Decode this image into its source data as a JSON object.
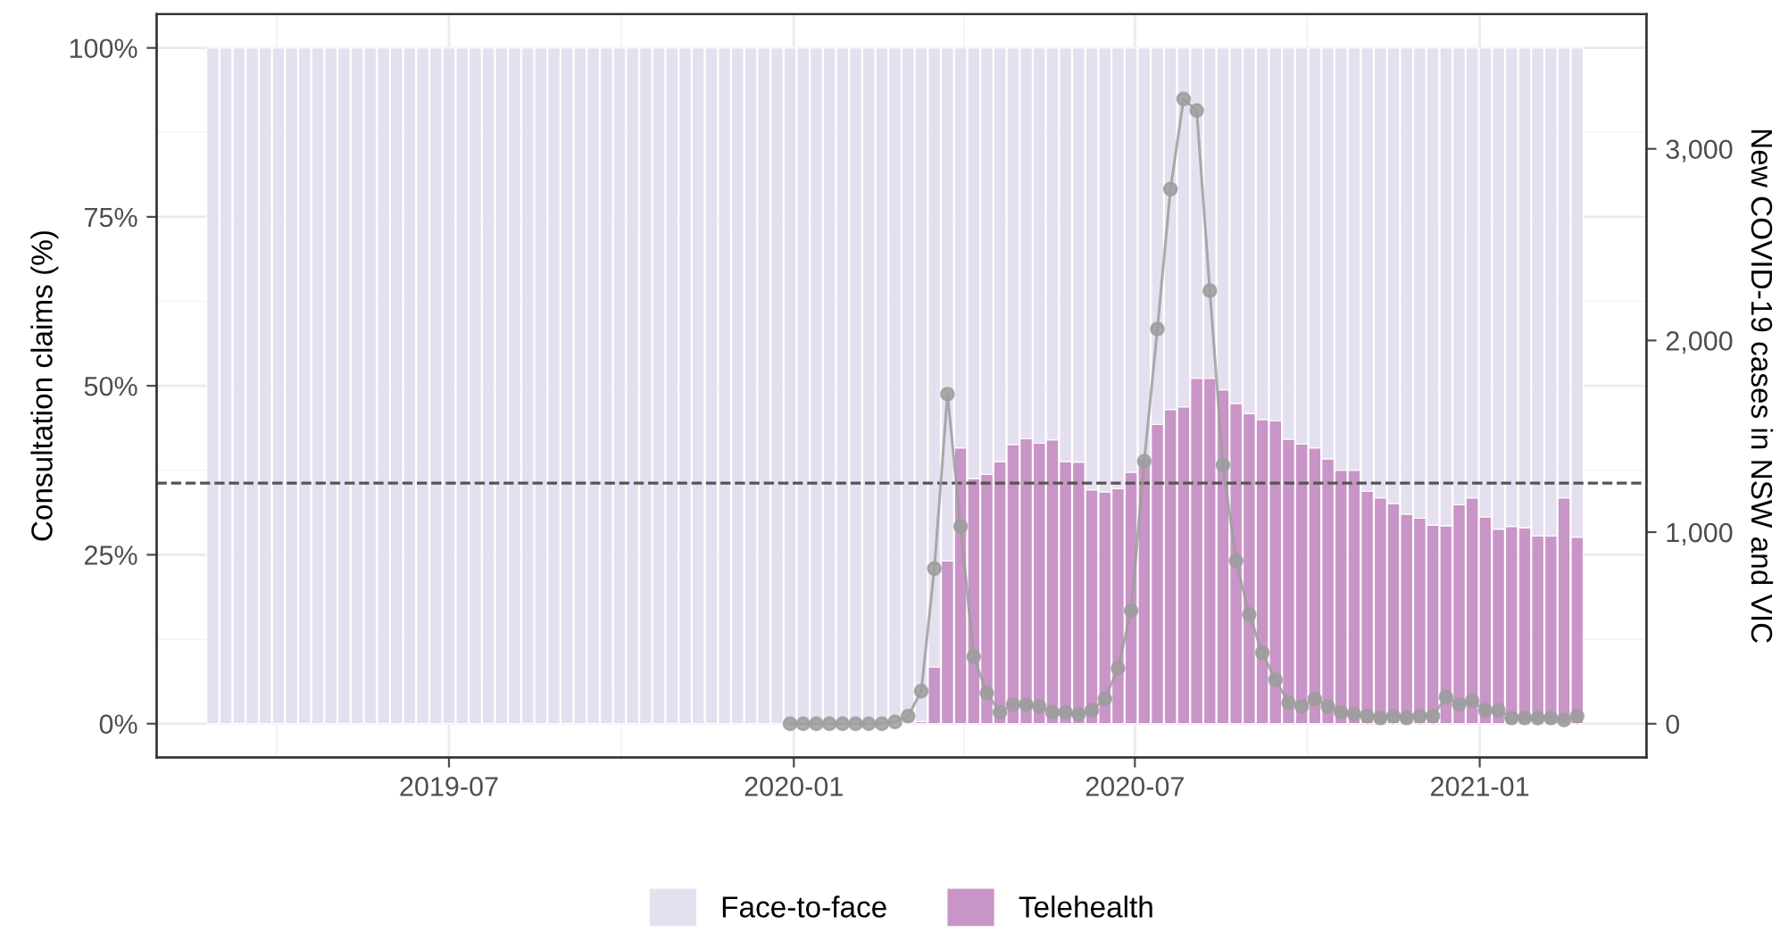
{
  "chart_data": {
    "type": "bar",
    "stacked": true,
    "xlabel": null,
    "ylabel": "Consultation claims (%)",
    "y2label": "New COVID-19 cases in NSW and VIC",
    "x": [
      "2019-02-25",
      "2019-03-04",
      "2019-03-11",
      "2019-03-18",
      "2019-03-25",
      "2019-04-01",
      "2019-04-08",
      "2019-04-15",
      "2019-04-22",
      "2019-04-29",
      "2019-05-06",
      "2019-05-13",
      "2019-05-20",
      "2019-05-27",
      "2019-06-03",
      "2019-06-10",
      "2019-06-17",
      "2019-06-24",
      "2019-07-01",
      "2019-07-08",
      "2019-07-15",
      "2019-07-22",
      "2019-07-29",
      "2019-08-05",
      "2019-08-12",
      "2019-08-19",
      "2019-08-26",
      "2019-09-02",
      "2019-09-09",
      "2019-09-16",
      "2019-09-23",
      "2019-09-30",
      "2019-10-07",
      "2019-10-14",
      "2019-10-21",
      "2019-10-28",
      "2019-11-04",
      "2019-11-11",
      "2019-11-18",
      "2019-11-25",
      "2019-12-02",
      "2019-12-09",
      "2019-12-16",
      "2019-12-23",
      "2019-12-30",
      "2020-01-06",
      "2020-01-13",
      "2020-01-20",
      "2020-01-27",
      "2020-02-03",
      "2020-02-10",
      "2020-02-17",
      "2020-02-24",
      "2020-03-02",
      "2020-03-09",
      "2020-03-16",
      "2020-03-23",
      "2020-03-30",
      "2020-04-06",
      "2020-04-13",
      "2020-04-20",
      "2020-04-27",
      "2020-05-04",
      "2020-05-11",
      "2020-05-18",
      "2020-05-25",
      "2020-06-01",
      "2020-06-08",
      "2020-06-15",
      "2020-06-22",
      "2020-06-29",
      "2020-07-06",
      "2020-07-13",
      "2020-07-20",
      "2020-07-27",
      "2020-08-03",
      "2020-08-10",
      "2020-08-17",
      "2020-08-24",
      "2020-08-31",
      "2020-09-07",
      "2020-09-14",
      "2020-09-21",
      "2020-09-28",
      "2020-10-05",
      "2020-10-12",
      "2020-10-19",
      "2020-10-26",
      "2020-11-02",
      "2020-11-09",
      "2020-11-16",
      "2020-11-23",
      "2020-11-30",
      "2020-12-07",
      "2020-12-14",
      "2020-12-21",
      "2020-12-28",
      "2021-01-04",
      "2021-01-11",
      "2021-01-18",
      "2021-01-25",
      "2021-02-01",
      "2021-02-08",
      "2021-02-15",
      "2021-02-22"
    ],
    "xlim": [
      "2019-01-26",
      "2021-03-31"
    ],
    "xticks": [
      {
        "value": "2019-07-01",
        "label": "2019-07"
      },
      {
        "value": "2020-01-01",
        "label": "2020-01"
      },
      {
        "value": "2020-07-01",
        "label": "2020-07"
      },
      {
        "value": "2021-01-01",
        "label": "2021-01"
      }
    ],
    "ylim": [
      -5,
      105
    ],
    "yticks": [
      {
        "value": 0,
        "label": "0%"
      },
      {
        "value": 25,
        "label": "25%"
      },
      {
        "value": 50,
        "label": "50%"
      },
      {
        "value": 75,
        "label": "75%"
      },
      {
        "value": 100,
        "label": "100%"
      }
    ],
    "y2lim": [
      -176,
      3703
    ],
    "y2ticks": [
      0,
      {
        "value": 1000,
        "label": "1,000"
      },
      {
        "value": 2000,
        "label": "2,000"
      },
      {
        "value": 3000,
        "label": "3,000"
      }
    ],
    "grid": true,
    "legend": "bottom",
    "ref_lines": [
      {
        "axis": "y",
        "value": 35.6,
        "color": "#555555",
        "line_style": "dashed"
      }
    ],
    "series": [
      {
        "name": "Telehealth",
        "color": "#c994c7",
        "values": [
          0,
          0,
          0,
          0,
          0,
          0,
          0,
          0,
          0,
          0,
          0,
          0,
          0,
          0,
          0,
          0,
          0,
          0,
          0,
          0,
          0,
          0,
          0,
          0,
          0,
          0,
          0,
          0,
          0,
          0,
          0,
          0,
          0,
          0,
          0,
          0,
          0,
          0,
          0,
          0,
          0,
          0,
          0,
          0,
          0,
          0,
          0,
          0,
          0,
          0,
          0,
          0,
          0,
          0,
          0.3,
          8.4,
          24.1,
          40.8,
          36.3,
          36.9,
          38.8,
          41.3,
          42.2,
          41.5,
          42.0,
          38.8,
          38.7,
          34.6,
          34.3,
          34.8,
          37.2,
          39.2,
          44.3,
          46.5,
          46.9,
          51.1,
          51.1,
          49.4,
          47.4,
          45.9,
          45.0,
          44.8,
          42.1,
          41.4,
          40.8,
          39.2,
          37.5,
          37.5,
          34.4,
          33.4,
          32.6,
          31.0,
          30.4,
          29.4,
          29.3,
          32.4,
          33.4,
          30.6,
          28.8,
          29.2,
          29.0,
          27.8,
          27.8,
          33.4,
          27.6
        ]
      },
      {
        "name": "Face-to-face",
        "color": "#e5e0ef",
        "values": [
          100,
          100,
          100,
          100,
          100,
          100,
          100,
          100,
          100,
          100,
          100,
          100,
          100,
          100,
          100,
          100,
          100,
          100,
          100,
          100,
          100,
          100,
          100,
          100,
          100,
          100,
          100,
          100,
          100,
          100,
          100,
          100,
          100,
          100,
          100,
          100,
          100,
          100,
          100,
          100,
          100,
          100,
          100,
          100,
          100,
          100,
          100,
          100,
          100,
          100,
          100,
          100,
          100,
          100,
          99.7,
          91.6,
          75.9,
          59.2,
          63.7,
          63.1,
          61.2,
          58.7,
          57.8,
          58.5,
          58.0,
          61.2,
          61.3,
          65.4,
          65.7,
          65.2,
          62.8,
          60.8,
          55.7,
          53.5,
          53.1,
          48.9,
          48.9,
          50.6,
          52.6,
          54.1,
          55.0,
          55.2,
          57.9,
          58.6,
          59.2,
          60.8,
          62.5,
          62.5,
          65.6,
          66.6,
          67.4,
          69.0,
          69.6,
          70.6,
          70.7,
          67.6,
          66.6,
          69.4,
          71.2,
          70.8,
          71.0,
          72.2,
          72.2,
          66.6,
          72.4
        ]
      },
      {
        "type": "line",
        "axis": "y2",
        "color": "#9e9e9e",
        "marker": "circle",
        "values": [
          null,
          null,
          null,
          null,
          null,
          null,
          null,
          null,
          null,
          null,
          null,
          null,
          null,
          null,
          null,
          null,
          null,
          null,
          null,
          null,
          null,
          null,
          null,
          null,
          null,
          null,
          null,
          null,
          null,
          null,
          null,
          null,
          null,
          null,
          null,
          null,
          null,
          null,
          null,
          null,
          null,
          null,
          null,
          null,
          0,
          0,
          0,
          0,
          0,
          0,
          0,
          0,
          10,
          40,
          170,
          810,
          1720,
          1030,
          350,
          160,
          60,
          100,
          100,
          90,
          60,
          60,
          50,
          70,
          130,
          290,
          590,
          1370,
          2060,
          2790,
          3260,
          3200,
          2260,
          1350,
          850,
          570,
          370,
          230,
          110,
          90,
          130,
          90,
          60,
          50,
          40,
          30,
          40,
          30,
          40,
          40,
          140,
          100,
          120,
          70,
          70,
          30,
          30,
          30,
          30,
          20,
          40
        ]
      }
    ]
  }
}
